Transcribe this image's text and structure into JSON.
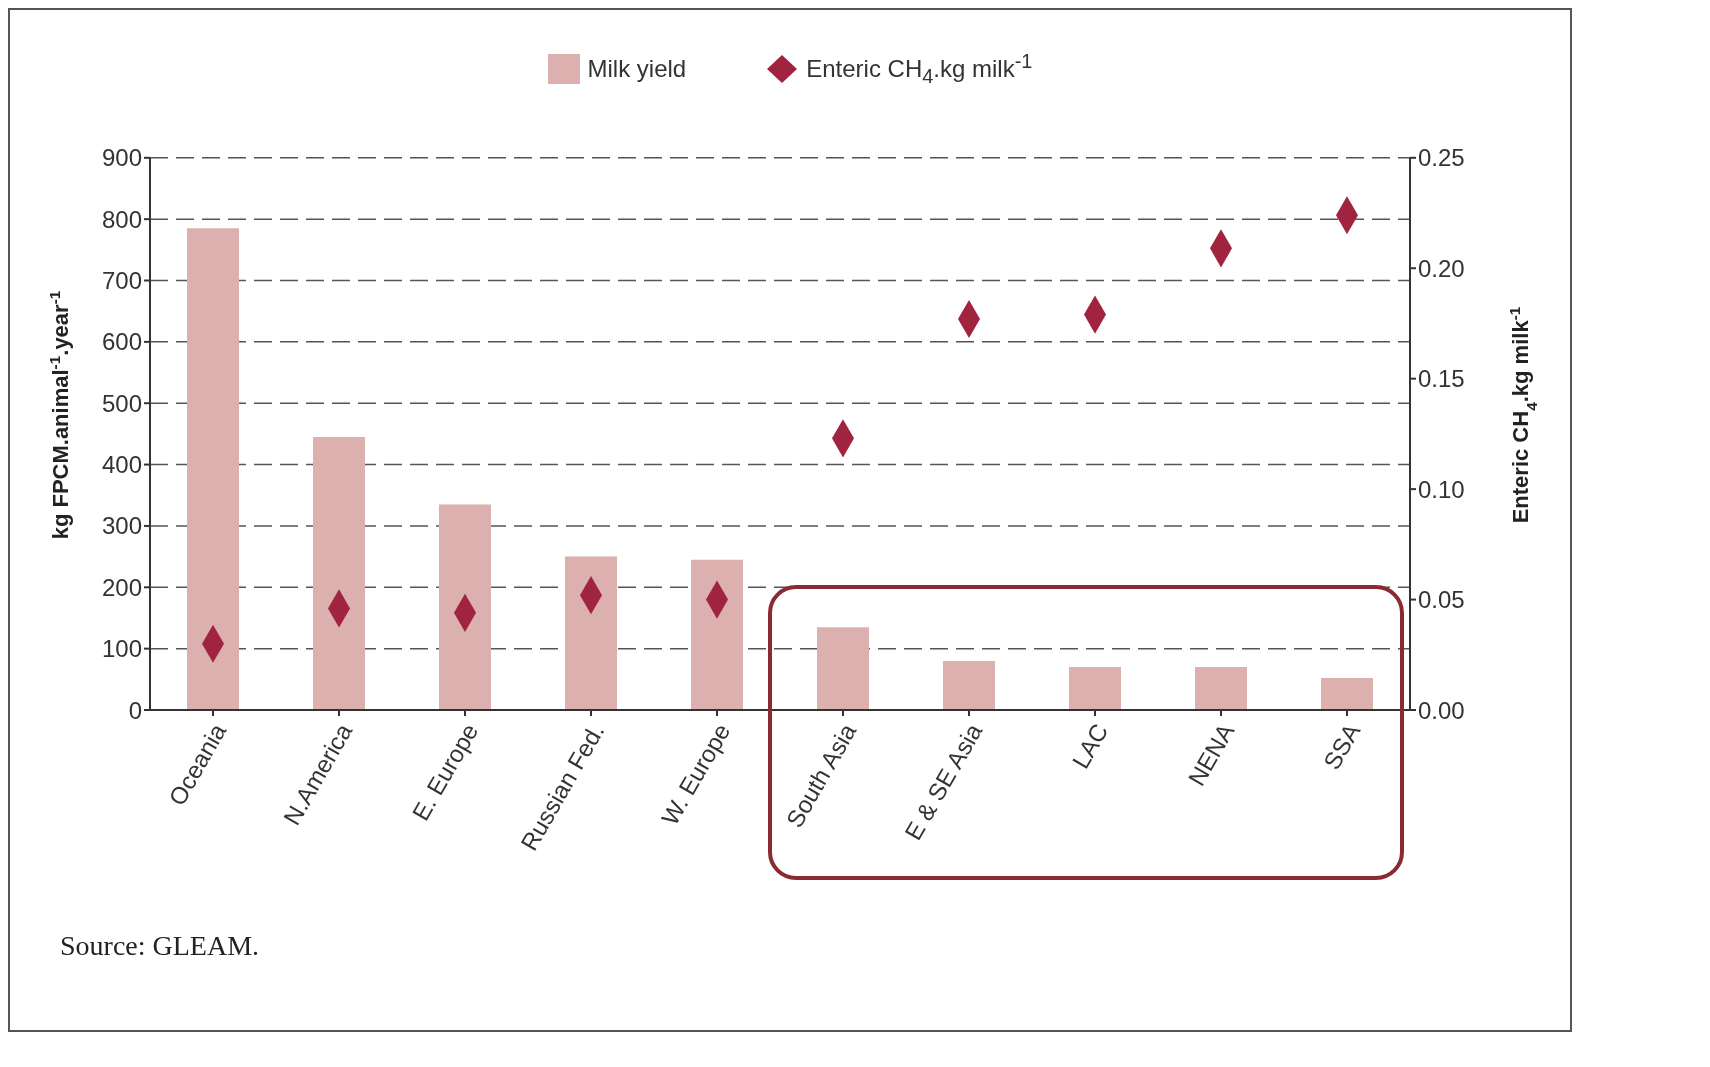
{
  "chart_data": {
    "type": "bar",
    "categories": [
      "Oceania",
      "N.America",
      "E. Europe",
      "Russian Fed.",
      "W. Europe",
      "South Asia",
      "E & SE Asia",
      "LAC",
      "NENA",
      "SSA"
    ],
    "series": [
      {
        "name": "Milk yield",
        "color": "#dbb0ae",
        "values": [
          785,
          445,
          335,
          250,
          245,
          135,
          80,
          70,
          70,
          52
        ]
      },
      {
        "name": "Enteric CH$_{4}$.kg milk$^{-1}$",
        "type": "scatter",
        "axis": "y2",
        "marker": "diamond",
        "color": "#a0243f",
        "values": [
          0.03,
          0.046,
          0.044,
          0.052,
          0.05,
          0.123,
          0.177,
          0.179,
          0.209,
          0.224
        ]
      }
    ],
    "ylabel": "kg FPCM.animal$^{-1}$.year$^{-1}$",
    "y2label": "Enteric CH$_{4}$.kg milk$^{-1}$",
    "ylim": [
      0,
      900
    ],
    "yticks": [
      0,
      100,
      200,
      300,
      400,
      500,
      600,
      700,
      800,
      900
    ],
    "y2lim": [
      0,
      0.25
    ],
    "y2ticks": [
      {
        "value": 0,
        "label": "0.00"
      },
      {
        "value": 0.05,
        "label": "0.05"
      },
      {
        "value": 0.1,
        "label": "0.10"
      },
      {
        "value": 0.15,
        "label": "0.15"
      },
      {
        "value": 0.2,
        "label": "0.20"
      },
      {
        "value": 0.25,
        "label": "0.25"
      }
    ],
    "grid": "y",
    "legend": "top",
    "annotations": [
      "Source: GLEAM."
    ]
  }
}
